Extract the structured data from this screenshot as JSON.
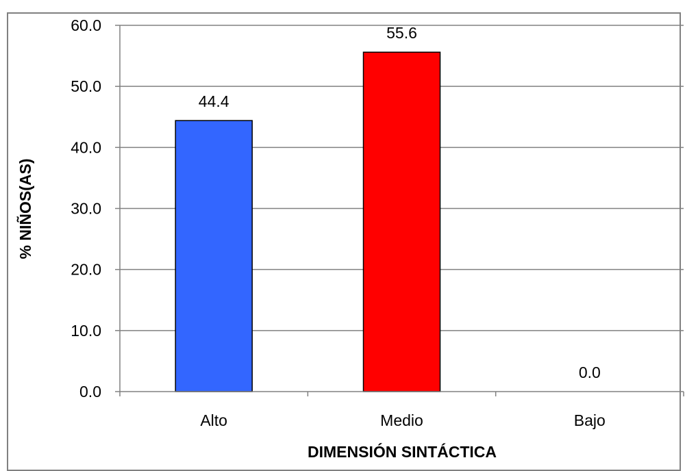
{
  "chart_data": {
    "type": "bar",
    "categories": [
      "Alto",
      "Medio",
      "Bajo"
    ],
    "values": [
      44.4,
      55.6,
      0.0
    ],
    "data_labels": [
      "44.4",
      "55.6",
      "0.0"
    ],
    "bar_colors": [
      "#3366FF",
      "#FF0000",
      "#FFFFFF"
    ],
    "title": "",
    "xlabel": "DIMENSIÓN SINTÁCTICA",
    "ylabel": "% NIÑOS(AS)",
    "ylim": [
      0,
      60
    ],
    "yticks": [
      "0.0",
      "10.0",
      "20.0",
      "30.0",
      "40.0",
      "50.0",
      "60.0"
    ],
    "grid": true,
    "legend": "none"
  }
}
